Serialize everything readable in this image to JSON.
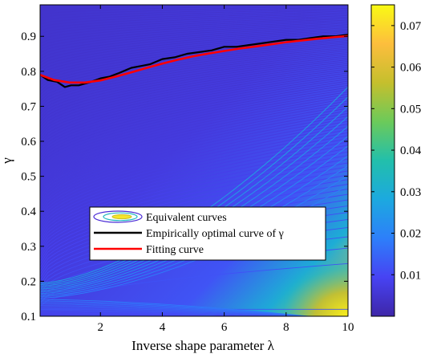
{
  "chart_data": {
    "type": "contour",
    "xlabel": "Inverse shape parameter λ",
    "ylabel": "γ",
    "xlim": [
      0.05,
      10
    ],
    "ylim": [
      0.1,
      0.99
    ],
    "x_ticks": [
      "2",
      "4",
      "6",
      "8",
      "10"
    ],
    "x_tick_values": [
      2,
      4,
      6,
      8,
      10
    ],
    "y_ticks": [
      "0.1",
      "0.2",
      "0.3",
      "0.4",
      "0.5",
      "0.6",
      "0.7",
      "0.8",
      "0.9"
    ],
    "y_tick_values": [
      0.1,
      0.2,
      0.3,
      0.4,
      0.5,
      0.6,
      0.7,
      0.8,
      0.9
    ],
    "colorbar": {
      "range": [
        0.0,
        0.075
      ],
      "ticks": [
        "0.01",
        "0.02",
        "0.03",
        "0.04",
        "0.05",
        "0.06",
        "0.07"
      ],
      "tick_values": [
        0.01,
        0.02,
        0.03,
        0.04,
        0.05,
        0.06,
        0.07
      ],
      "colormap": [
        "#3e26a8",
        "#4743f3",
        "#2d7ffa",
        "#1ca9df",
        "#22bfab",
        "#6cca5a",
        "#c5bf2d",
        "#fdbe3d",
        "#f9fa14"
      ]
    },
    "legend": {
      "placement": "center-bottom",
      "entries": [
        {
          "label": "Equivalent curves",
          "style": "contour-icon"
        },
        {
          "label": "Empirically optimal curve of γ",
          "style": "line",
          "color": "#000000"
        },
        {
          "label": "Fitting curve",
          "style": "line",
          "color": "#ff0000"
        }
      ]
    },
    "series": [
      {
        "name": "Empirically optimal curve of γ",
        "color": "#000000",
        "x": [
          0.05,
          0.3,
          0.6,
          0.85,
          1.05,
          1.3,
          1.7,
          2.0,
          2.3,
          2.6,
          3.0,
          3.3,
          3.6,
          4.0,
          4.4,
          4.8,
          5.2,
          5.6,
          6.0,
          6.4,
          6.8,
          7.2,
          7.6,
          8.0,
          8.4,
          8.8,
          9.2,
          9.6,
          10.0
        ],
        "y": [
          0.79,
          0.775,
          0.77,
          0.755,
          0.76,
          0.76,
          0.77,
          0.78,
          0.785,
          0.795,
          0.81,
          0.815,
          0.82,
          0.835,
          0.84,
          0.85,
          0.855,
          0.86,
          0.87,
          0.87,
          0.875,
          0.88,
          0.885,
          0.89,
          0.89,
          0.895,
          0.9,
          0.9,
          0.905
        ]
      },
      {
        "name": "Fitting curve",
        "color": "#ff0000",
        "x": [
          0.05,
          0.5,
          1.0,
          1.5,
          2.0,
          2.5,
          3.0,
          3.5,
          4.0,
          4.5,
          5.0,
          5.5,
          6.0,
          6.5,
          7.0,
          7.5,
          8.0,
          8.5,
          9.0,
          9.5,
          10.0
        ],
        "y": [
          0.79,
          0.775,
          0.768,
          0.768,
          0.774,
          0.785,
          0.797,
          0.81,
          0.822,
          0.833,
          0.843,
          0.851,
          0.858,
          0.865,
          0.871,
          0.877,
          0.883,
          0.888,
          0.893,
          0.897,
          0.901
        ]
      }
    ]
  }
}
